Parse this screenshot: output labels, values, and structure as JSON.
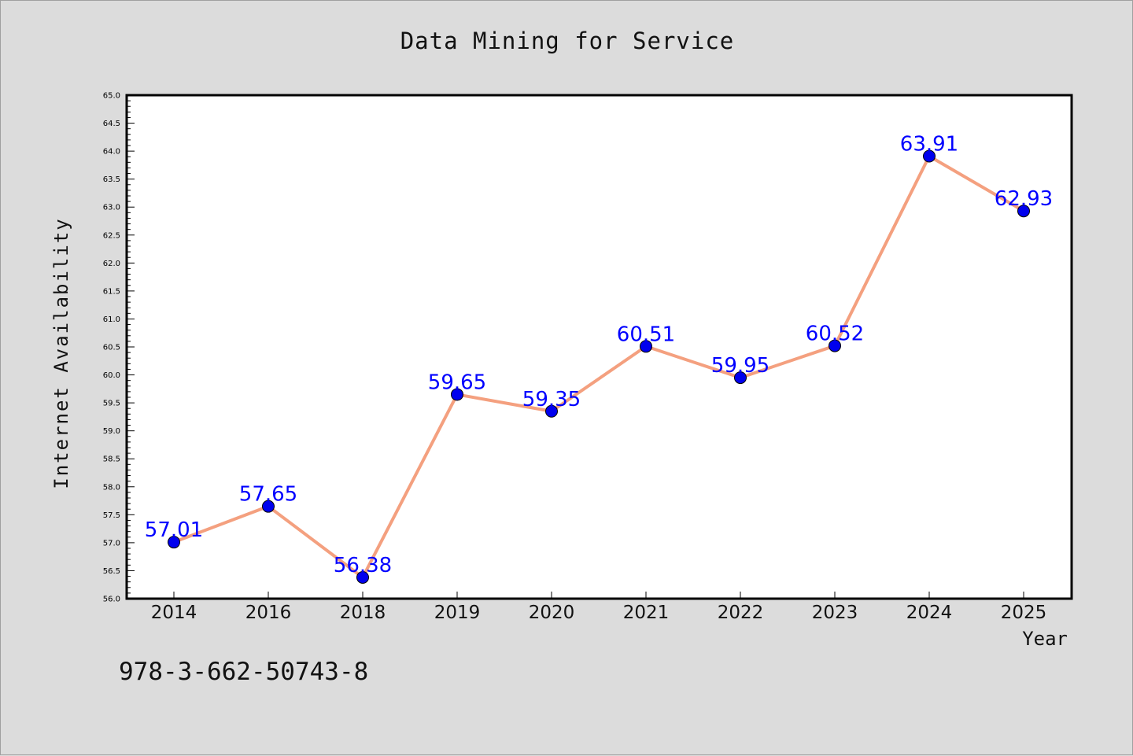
{
  "page": {
    "footer_text": "978-3-662-50743-8"
  },
  "colors": {
    "background": "#dcdcdc",
    "plot_background": "#ffffff",
    "line": "#f4a07f",
    "marker": "#0000ee",
    "data_label": "#0000ff"
  },
  "chart_data": {
    "type": "line",
    "title": "Data Mining for Service",
    "xlabel": "Year",
    "ylabel": "Internet Availability",
    "categories": [
      "2014",
      "2016",
      "2018",
      "2019",
      "2020",
      "2021",
      "2022",
      "2023",
      "2024",
      "2025"
    ],
    "values": [
      57.01,
      57.65,
      56.38,
      59.65,
      59.35,
      60.51,
      59.95,
      60.52,
      63.91,
      62.93
    ],
    "data_labels": [
      "57.01",
      "57.65",
      "56.38",
      "59.65",
      "59.35",
      "60.51",
      "59.95",
      "60.52",
      "63.91",
      "62.93"
    ],
    "ylim": [
      56.0,
      65.0
    ],
    "y_ticks": [
      "56.0",
      "56.5",
      "57.0",
      "57.5",
      "58.0",
      "58.5",
      "59.0",
      "59.5",
      "60.0",
      "60.5",
      "61.0",
      "61.5",
      "62.0",
      "62.5",
      "63.0",
      "63.5",
      "64.0",
      "64.5",
      "65.0"
    ],
    "grid": false,
    "legend": "none"
  }
}
